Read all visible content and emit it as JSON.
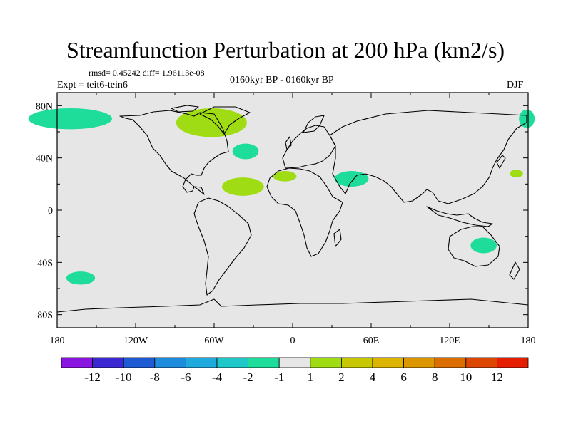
{
  "title": "Streamfunction Perturbation at 200 hPa (km2/s)",
  "stats": "rmsd= 0.45242 diff= 1.96113e-08",
  "experiment": "Expt = teit6-tein6",
  "period": "0160kyr BP - 0160kyr BP",
  "season": "DJF",
  "lat_labels": [
    "80N",
    "40N",
    "0",
    "40S",
    "80S"
  ],
  "lat_values": [
    80,
    40,
    0,
    -40,
    -80
  ],
  "lon_labels": [
    "180",
    "120W",
    "60W",
    "0",
    "60E",
    "120E",
    "180"
  ],
  "lon_values": [
    -180,
    -120,
    -60,
    0,
    60,
    120,
    180
  ],
  "colorbar": {
    "colors": [
      "#8a14e0",
      "#3c28d2",
      "#1e5ad2",
      "#1e8cdc",
      "#1eaadc",
      "#1ec8c8",
      "#1edc9a",
      "#e6e6e6",
      "#a0dc14",
      "#c8c800",
      "#dcb400",
      "#dc9600",
      "#dc6e00",
      "#dc4600",
      "#e61e00"
    ],
    "labels": [
      "-12",
      "-10",
      "-8",
      "-6",
      "-4",
      "-2",
      "-1",
      "1",
      "2",
      "4",
      "6",
      "8",
      "10",
      "12"
    ]
  },
  "anomalies": [
    {
      "name": "alaska-negative",
      "lon": -170,
      "lat": 70,
      "rx": 32,
      "ry": 8,
      "color": "#1edc9a"
    },
    {
      "name": "eastasia-edge-negative",
      "lon": 179,
      "lat": 70,
      "rx": 6,
      "ry": 7,
      "color": "#1edc9a"
    },
    {
      "name": "greenland-positive",
      "lon": -62,
      "lat": 67,
      "rx": 27,
      "ry": 11,
      "color": "#a0dc14"
    },
    {
      "name": "northatlantic-negative",
      "lon": -36,
      "lat": 45,
      "rx": 10,
      "ry": 6,
      "color": "#1edc9a"
    },
    {
      "name": "tropical-atlantic-positive",
      "lon": -38,
      "lat": 18,
      "rx": 16,
      "ry": 7,
      "color": "#a0dc14"
    },
    {
      "name": "westafrica-positive",
      "lon": -6,
      "lat": 26,
      "rx": 9,
      "ry": 4,
      "color": "#a0dc14"
    },
    {
      "name": "arabia-negative",
      "lon": 45,
      "lat": 24,
      "rx": 13,
      "ry": 6,
      "color": "#1edc9a"
    },
    {
      "name": "pacific-positive",
      "lon": 171,
      "lat": 28,
      "rx": 5,
      "ry": 3,
      "color": "#a0dc14"
    },
    {
      "name": "australia-negative",
      "lon": 146,
      "lat": -27,
      "rx": 10,
      "ry": 6,
      "color": "#1edc9a"
    },
    {
      "name": "southpacific-negative",
      "lon": -162,
      "lat": -52,
      "rx": 11,
      "ry": 5,
      "color": "#1edc9a"
    }
  ]
}
